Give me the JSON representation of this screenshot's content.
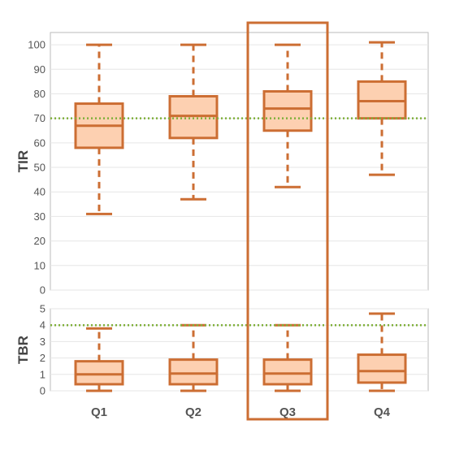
{
  "chart_data": [
    {
      "type": "box",
      "title": "",
      "xlabel": "",
      "ylabel": "TIR",
      "ylim": [
        0,
        105
      ],
      "yticks": [
        0,
        10,
        20,
        30,
        40,
        50,
        60,
        70,
        80,
        90,
        100
      ],
      "grid": true,
      "reference_line": 70,
      "categories": [
        "Q1",
        "Q2",
        "Q3",
        "Q4"
      ],
      "boxes": [
        {
          "min": 31,
          "q1": 58,
          "median": 67,
          "q3": 76,
          "max": 100
        },
        {
          "min": 37,
          "q1": 62,
          "median": 71,
          "q3": 79,
          "max": 100
        },
        {
          "min": 42,
          "q1": 65,
          "median": 74,
          "q3": 81,
          "max": 100
        },
        {
          "min": 47,
          "q1": 70,
          "median": 77,
          "q3": 85,
          "max": 101
        }
      ]
    },
    {
      "type": "box",
      "title": "",
      "xlabel": "",
      "ylabel": "TBR",
      "ylim": [
        0,
        5
      ],
      "yticks": [
        0,
        1,
        2,
        3,
        4,
        5
      ],
      "grid": true,
      "reference_line": 4,
      "categories": [
        "Q1",
        "Q2",
        "Q3",
        "Q4"
      ],
      "highlighted_category": "Q3",
      "boxes": [
        {
          "min": 0,
          "q1": 0.4,
          "median": 1.0,
          "q3": 1.8,
          "max": 3.8
        },
        {
          "min": 0,
          "q1": 0.4,
          "median": 1.05,
          "q3": 1.9,
          "max": 4.0
        },
        {
          "min": 0,
          "q1": 0.4,
          "median": 1.05,
          "q3": 1.9,
          "max": 4.0
        },
        {
          "min": 0,
          "q1": 0.5,
          "median": 1.2,
          "q3": 2.2,
          "max": 4.7
        }
      ]
    }
  ],
  "colors": {
    "box_fill": "#fdd0b1",
    "box_stroke": "#cc6e33",
    "reference_line": "#7fb03a",
    "grid": "#e6e6e6",
    "axis": "#bbbbbb",
    "highlight": "#cc6e33"
  }
}
